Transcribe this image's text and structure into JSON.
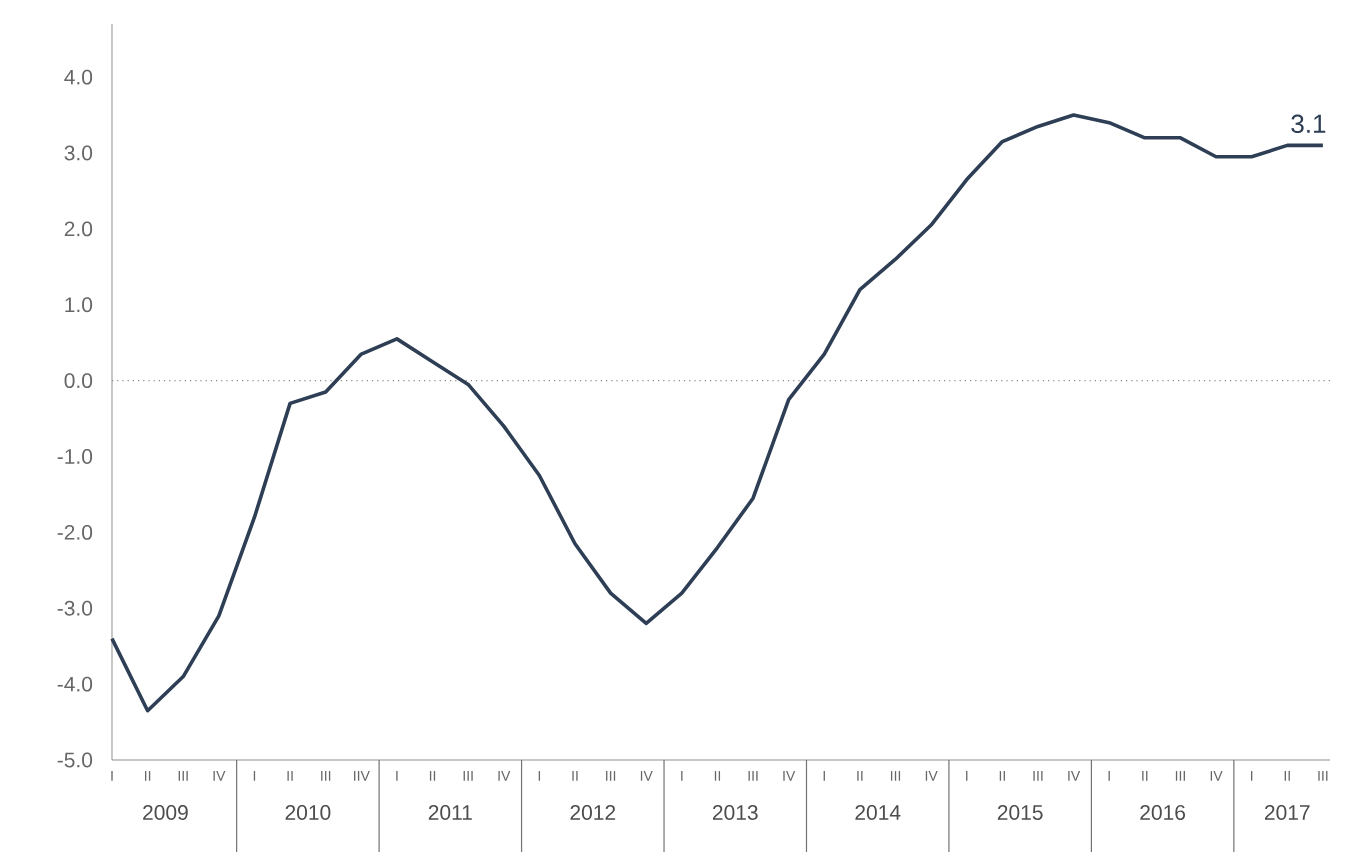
{
  "chart_data": {
    "type": "line",
    "categories": [
      "I",
      "II",
      "III",
      "IV",
      "I",
      "II",
      "III",
      "IIV",
      "I",
      "II",
      "III",
      "IV",
      "I",
      "II",
      "III",
      "IV",
      "I",
      "II",
      "III",
      "IV",
      "I",
      "II",
      "III",
      "IV",
      "I",
      "II",
      "III",
      "IV",
      "I",
      "II",
      "III",
      "IV",
      "I",
      "II",
      "III"
    ],
    "series": [
      {
        "color": "#2d3e55",
        "values": [
          -3.4,
          -4.35,
          -3.9,
          -3.1,
          -1.8,
          -0.3,
          -0.15,
          0.35,
          0.55,
          0.25,
          -0.05,
          -0.6,
          -1.25,
          -2.15,
          -2.8,
          -3.2,
          -2.8,
          -2.2,
          -1.55,
          -0.25,
          0.35,
          1.2,
          1.6,
          2.05,
          2.65,
          3.15,
          3.35,
          3.5,
          3.4,
          3.2,
          3.2,
          2.95,
          2.95,
          3.1,
          3.1
        ],
        "value_labels": [
          null,
          null,
          null,
          null,
          null,
          null,
          null,
          null,
          null,
          null,
          null,
          null,
          null,
          null,
          null,
          null,
          null,
          null,
          null,
          null,
          null,
          null,
          null,
          null,
          null,
          null,
          null,
          null,
          null,
          null,
          null,
          null,
          null,
          null,
          "3.1"
        ]
      }
    ],
    "ylim": [
      -5,
      4.7
    ],
    "yticks": [
      {
        "value": -5,
        "label": "-5.0"
      },
      {
        "value": -4,
        "label": "-4.0"
      },
      {
        "value": -3,
        "label": "-3.0"
      },
      {
        "value": -2,
        "label": "-2.0"
      },
      {
        "value": -1,
        "label": "-1.0"
      },
      {
        "value": 0,
        "label": "0.0"
      },
      {
        "value": 1,
        "label": "1.0"
      },
      {
        "value": 2,
        "label": "2.0"
      },
      {
        "value": 3,
        "label": "3.0"
      },
      {
        "value": 4,
        "label": "4.0"
      }
    ],
    "ref_lines": [
      {
        "axis": "y",
        "value": 0,
        "color": "#8a8a8a",
        "line_style": "dotted"
      }
    ],
    "annotations": [
      "2009",
      "2010",
      "2011",
      "2012",
      "2013",
      "2014",
      "2015",
      "2016",
      "2017"
    ],
    "grid": false,
    "marker": "none",
    "line_style": "solid"
  }
}
